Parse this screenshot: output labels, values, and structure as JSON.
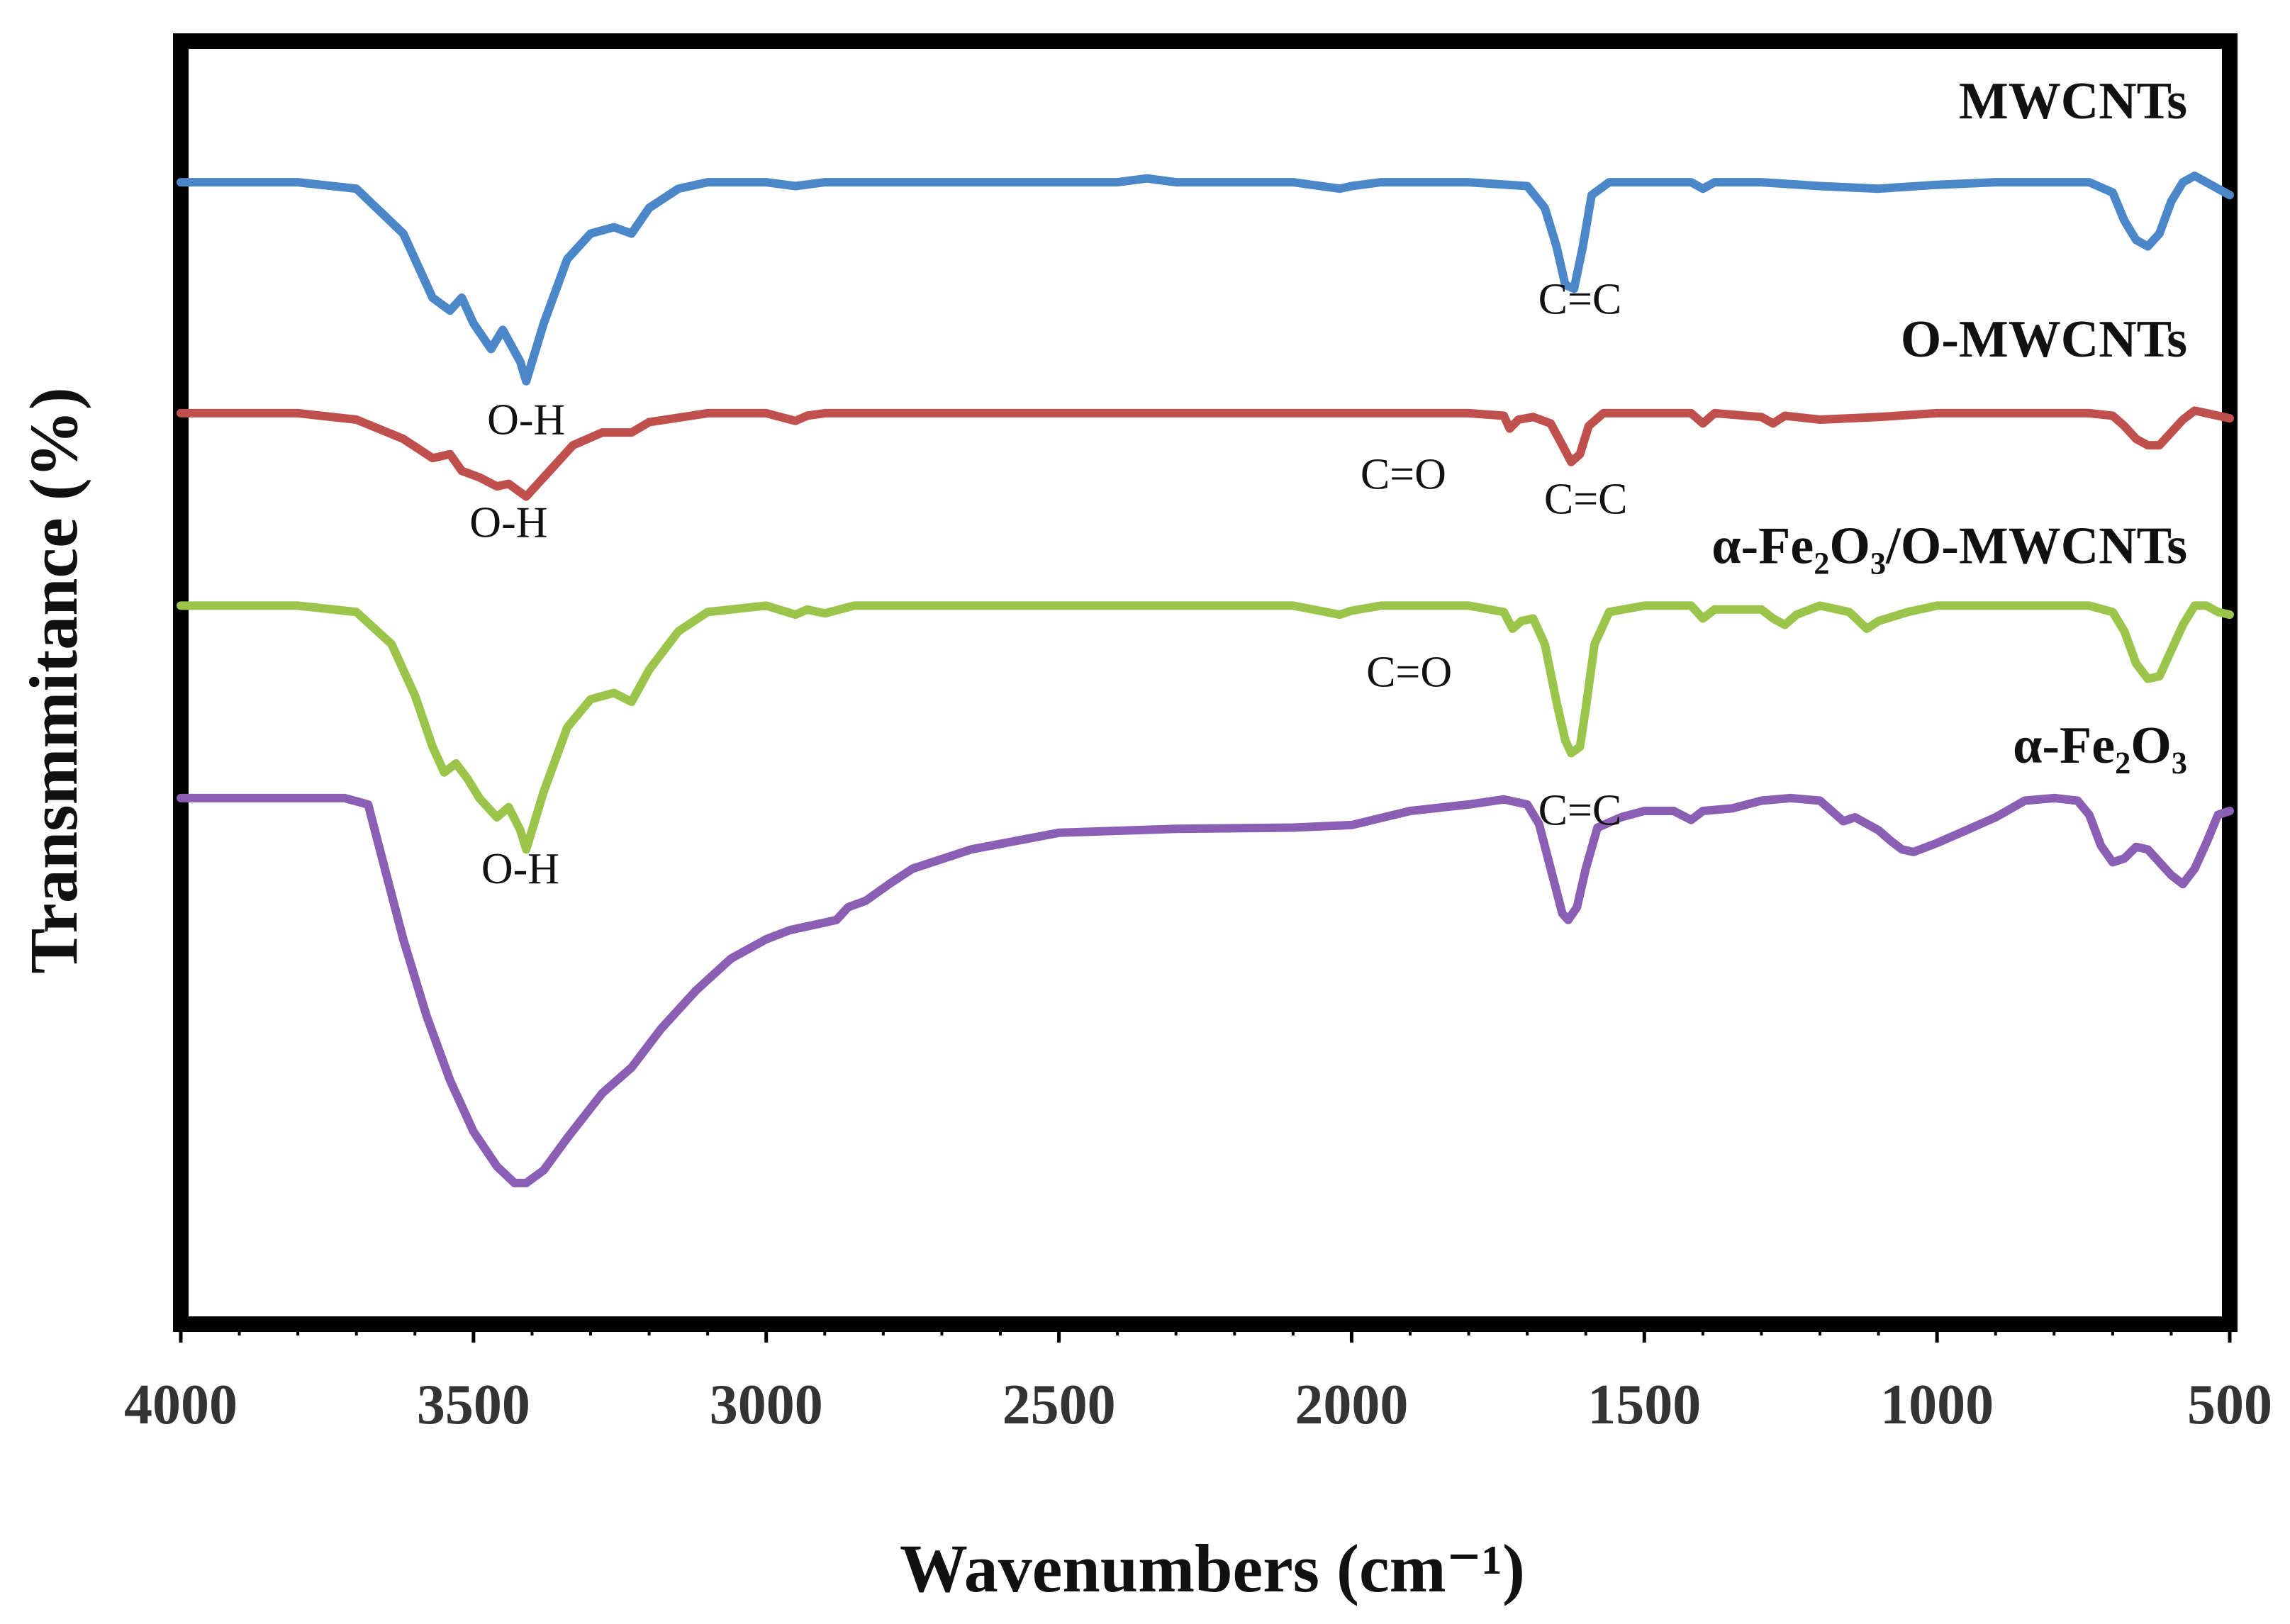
{
  "chart_data": {
    "type": "line",
    "title": "",
    "xlabel": "Wavenumbers (cm⁻¹)",
    "ylabel": "Transmmitance (%)",
    "xlim": [
      4000,
      500
    ],
    "ylim": [
      0,
      100
    ],
    "x_reversed": true,
    "grid": false,
    "x_ticks": [
      4000,
      3500,
      3000,
      2500,
      2000,
      1500,
      1000,
      500
    ],
    "x_tick_labels": [
      "4000",
      "3500",
      "3000",
      "2500",
      "2000",
      "1500",
      "1000",
      "500"
    ],
    "series": [
      {
        "name": "MWCNTs",
        "color": "#4a86c8",
        "points": [
          [
            4000,
            89
          ],
          [
            3800,
            89
          ],
          [
            3700,
            88.5
          ],
          [
            3620,
            85
          ],
          [
            3570,
            80
          ],
          [
            3540,
            79
          ],
          [
            3520,
            80
          ],
          [
            3500,
            78
          ],
          [
            3470,
            76
          ],
          [
            3450,
            77.5
          ],
          [
            3420,
            75
          ],
          [
            3410,
            73.5
          ],
          [
            3380,
            78
          ],
          [
            3340,
            83
          ],
          [
            3300,
            85
          ],
          [
            3260,
            85.5
          ],
          [
            3230,
            85
          ],
          [
            3200,
            87
          ],
          [
            3150,
            88.5
          ],
          [
            3100,
            89
          ],
          [
            3000,
            89
          ],
          [
            2950,
            88.7
          ],
          [
            2900,
            89
          ],
          [
            2700,
            89
          ],
          [
            2500,
            89
          ],
          [
            2400,
            89
          ],
          [
            2350,
            89.3
          ],
          [
            2300,
            89
          ],
          [
            2100,
            89
          ],
          [
            2020,
            88.5
          ],
          [
            2000,
            88.7
          ],
          [
            1950,
            89
          ],
          [
            1800,
            89
          ],
          [
            1700,
            88.7
          ],
          [
            1670,
            87
          ],
          [
            1650,
            84
          ],
          [
            1635,
            81
          ],
          [
            1620,
            80.7
          ],
          [
            1605,
            84
          ],
          [
            1590,
            88
          ],
          [
            1560,
            89
          ],
          [
            1500,
            89
          ],
          [
            1420,
            89
          ],
          [
            1400,
            88.5
          ],
          [
            1380,
            89
          ],
          [
            1300,
            89
          ],
          [
            1200,
            88.7
          ],
          [
            1100,
            88.5
          ],
          [
            1000,
            88.8
          ],
          [
            900,
            89
          ],
          [
            800,
            89
          ],
          [
            740,
            89
          ],
          [
            700,
            88.2
          ],
          [
            680,
            86
          ],
          [
            660,
            84.5
          ],
          [
            640,
            84
          ],
          [
            620,
            85
          ],
          [
            600,
            87.5
          ],
          [
            580,
            89
          ],
          [
            560,
            89.5
          ],
          [
            540,
            89
          ],
          [
            520,
            88.5
          ],
          [
            500,
            88
          ]
        ]
      },
      {
        "name": "O-MWCNTs",
        "color": "#c0504d",
        "points": [
          [
            4000,
            71
          ],
          [
            3800,
            71
          ],
          [
            3700,
            70.5
          ],
          [
            3620,
            69
          ],
          [
            3570,
            67.5
          ],
          [
            3540,
            67.8
          ],
          [
            3520,
            66.5
          ],
          [
            3490,
            66
          ],
          [
            3460,
            65.3
          ],
          [
            3440,
            65.5
          ],
          [
            3410,
            64.5
          ],
          [
            3380,
            66
          ],
          [
            3330,
            68.5
          ],
          [
            3280,
            69.5
          ],
          [
            3230,
            69.5
          ],
          [
            3200,
            70.3
          ],
          [
            3100,
            71
          ],
          [
            3000,
            71
          ],
          [
            2950,
            70.4
          ],
          [
            2930,
            70.8
          ],
          [
            2900,
            71
          ],
          [
            2700,
            71
          ],
          [
            2400,
            71
          ],
          [
            2100,
            71
          ],
          [
            2000,
            71
          ],
          [
            1800,
            71
          ],
          [
            1740,
            70.8
          ],
          [
            1730,
            69.8
          ],
          [
            1715,
            70.5
          ],
          [
            1690,
            70.7
          ],
          [
            1660,
            70.2
          ],
          [
            1640,
            68.5
          ],
          [
            1625,
            67.2
          ],
          [
            1610,
            67.8
          ],
          [
            1595,
            70
          ],
          [
            1570,
            71
          ],
          [
            1500,
            71
          ],
          [
            1420,
            71
          ],
          [
            1400,
            70.2
          ],
          [
            1380,
            71
          ],
          [
            1300,
            70.7
          ],
          [
            1280,
            70.2
          ],
          [
            1260,
            70.8
          ],
          [
            1200,
            70.5
          ],
          [
            1100,
            70.7
          ],
          [
            1000,
            71
          ],
          [
            900,
            71
          ],
          [
            800,
            71
          ],
          [
            740,
            71
          ],
          [
            700,
            70.8
          ],
          [
            680,
            70
          ],
          [
            660,
            69
          ],
          [
            640,
            68.5
          ],
          [
            620,
            68.5
          ],
          [
            600,
            69.5
          ],
          [
            580,
            70.5
          ],
          [
            560,
            71.2
          ],
          [
            540,
            71
          ],
          [
            520,
            70.8
          ],
          [
            500,
            70.6
          ]
        ]
      },
      {
        "name": "α-Fe₂O₃/O-MWCNTs",
        "color": "#9bc44a",
        "points": [
          [
            4000,
            56
          ],
          [
            3800,
            56
          ],
          [
            3700,
            55.5
          ],
          [
            3640,
            53
          ],
          [
            3600,
            49
          ],
          [
            3570,
            45
          ],
          [
            3550,
            43
          ],
          [
            3530,
            43.7
          ],
          [
            3510,
            42.5
          ],
          [
            3490,
            41
          ],
          [
            3460,
            39.5
          ],
          [
            3440,
            40.3
          ],
          [
            3420,
            38.5
          ],
          [
            3410,
            37
          ],
          [
            3380,
            41.5
          ],
          [
            3340,
            46.5
          ],
          [
            3300,
            48.7
          ],
          [
            3260,
            49.2
          ],
          [
            3230,
            48.5
          ],
          [
            3200,
            51
          ],
          [
            3150,
            54
          ],
          [
            3100,
            55.5
          ],
          [
            3000,
            56
          ],
          [
            2950,
            55.3
          ],
          [
            2930,
            55.7
          ],
          [
            2900,
            55.4
          ],
          [
            2850,
            56
          ],
          [
            2700,
            56
          ],
          [
            2400,
            56
          ],
          [
            2100,
            56
          ],
          [
            2020,
            55.3
          ],
          [
            2000,
            55.6
          ],
          [
            1950,
            56
          ],
          [
            1800,
            56
          ],
          [
            1740,
            55.5
          ],
          [
            1725,
            54.2
          ],
          [
            1710,
            54.8
          ],
          [
            1690,
            55
          ],
          [
            1670,
            53
          ],
          [
            1650,
            48.5
          ],
          [
            1635,
            45.5
          ],
          [
            1625,
            44.5
          ],
          [
            1610,
            45
          ],
          [
            1600,
            48
          ],
          [
            1585,
            53
          ],
          [
            1560,
            55.5
          ],
          [
            1500,
            56
          ],
          [
            1420,
            56
          ],
          [
            1400,
            55
          ],
          [
            1380,
            55.7
          ],
          [
            1300,
            55.7
          ],
          [
            1280,
            55
          ],
          [
            1260,
            54.5
          ],
          [
            1240,
            55.3
          ],
          [
            1200,
            56
          ],
          [
            1150,
            55.5
          ],
          [
            1120,
            54.2
          ],
          [
            1100,
            54.8
          ],
          [
            1050,
            55.5
          ],
          [
            1000,
            56
          ],
          [
            900,
            56
          ],
          [
            800,
            56
          ],
          [
            740,
            56
          ],
          [
            700,
            55.5
          ],
          [
            680,
            54
          ],
          [
            660,
            51.5
          ],
          [
            640,
            50.3
          ],
          [
            620,
            50.5
          ],
          [
            600,
            52.5
          ],
          [
            580,
            54.5
          ],
          [
            560,
            56
          ],
          [
            540,
            56
          ],
          [
            520,
            55.5
          ],
          [
            500,
            55.3
          ]
        ]
      },
      {
        "name": "α-Fe₂O₃",
        "color": "#8a5fb3",
        "points": [
          [
            4000,
            41
          ],
          [
            3800,
            41
          ],
          [
            3720,
            41
          ],
          [
            3680,
            40.5
          ],
          [
            3660,
            37
          ],
          [
            3620,
            30
          ],
          [
            3580,
            24
          ],
          [
            3540,
            19
          ],
          [
            3500,
            15
          ],
          [
            3460,
            12.3
          ],
          [
            3430,
            11
          ],
          [
            3410,
            11
          ],
          [
            3380,
            12
          ],
          [
            3340,
            14.5
          ],
          [
            3280,
            18
          ],
          [
            3230,
            20
          ],
          [
            3180,
            23
          ],
          [
            3120,
            26
          ],
          [
            3060,
            28.5
          ],
          [
            3000,
            30
          ],
          [
            2960,
            30.7
          ],
          [
            2930,
            31
          ],
          [
            2900,
            31.3
          ],
          [
            2880,
            31.5
          ],
          [
            2860,
            32.5
          ],
          [
            2830,
            33
          ],
          [
            2790,
            34.3
          ],
          [
            2750,
            35.5
          ],
          [
            2650,
            37
          ],
          [
            2500,
            38.3
          ],
          [
            2300,
            38.6
          ],
          [
            2100,
            38.7
          ],
          [
            2000,
            38.9
          ],
          [
            1900,
            40
          ],
          [
            1800,
            40.5
          ],
          [
            1740,
            40.9
          ],
          [
            1700,
            40.5
          ],
          [
            1680,
            39
          ],
          [
            1660,
            35.5
          ],
          [
            1640,
            32
          ],
          [
            1630,
            31.5
          ],
          [
            1615,
            32.5
          ],
          [
            1600,
            35.5
          ],
          [
            1580,
            38.7
          ],
          [
            1540,
            39.5
          ],
          [
            1500,
            40
          ],
          [
            1450,
            40
          ],
          [
            1420,
            39.3
          ],
          [
            1400,
            40
          ],
          [
            1350,
            40.2
          ],
          [
            1300,
            40.8
          ],
          [
            1250,
            41
          ],
          [
            1200,
            40.8
          ],
          [
            1180,
            40
          ],
          [
            1160,
            39.2
          ],
          [
            1140,
            39.5
          ],
          [
            1100,
            38.5
          ],
          [
            1080,
            37.7
          ],
          [
            1060,
            37
          ],
          [
            1040,
            36.8
          ],
          [
            1000,
            37.5
          ],
          [
            950,
            38.5
          ],
          [
            900,
            39.5
          ],
          [
            850,
            40.8
          ],
          [
            800,
            41
          ],
          [
            760,
            40.8
          ],
          [
            740,
            39.7
          ],
          [
            720,
            37.3
          ],
          [
            700,
            36
          ],
          [
            680,
            36.3
          ],
          [
            660,
            37.2
          ],
          [
            640,
            37
          ],
          [
            620,
            36
          ],
          [
            600,
            35
          ],
          [
            580,
            34.3
          ],
          [
            560,
            35.5
          ],
          [
            540,
            37.5
          ],
          [
            520,
            39.7
          ],
          [
            500,
            40
          ]
        ]
      }
    ],
    "series_labels": [
      {
        "text": "MWCNTs",
        "series": 0
      },
      {
        "text": "O-MWCNTs",
        "series": 1
      },
      {
        "text": "α-Fe₂O₃/O-MWCNTs",
        "series": 2
      },
      {
        "text": "α-Fe₂O₃",
        "series": 3
      }
    ],
    "annotations": [
      {
        "text": "O-H",
        "series": 0,
        "x": 3410
      },
      {
        "text": "C=C",
        "series": 0,
        "x": 1610
      },
      {
        "text": "O-H",
        "series": 1,
        "x": 3440
      },
      {
        "text": "C=O",
        "series": 1,
        "x": 1730
      },
      {
        "text": "C=C",
        "series": 1,
        "x": 1600
      },
      {
        "text": "O-H",
        "series": 2,
        "x": 3420
      },
      {
        "text": "C=O",
        "series": 2,
        "x": 1720
      },
      {
        "text": "C=C",
        "series": 2,
        "x": 1610
      }
    ]
  }
}
